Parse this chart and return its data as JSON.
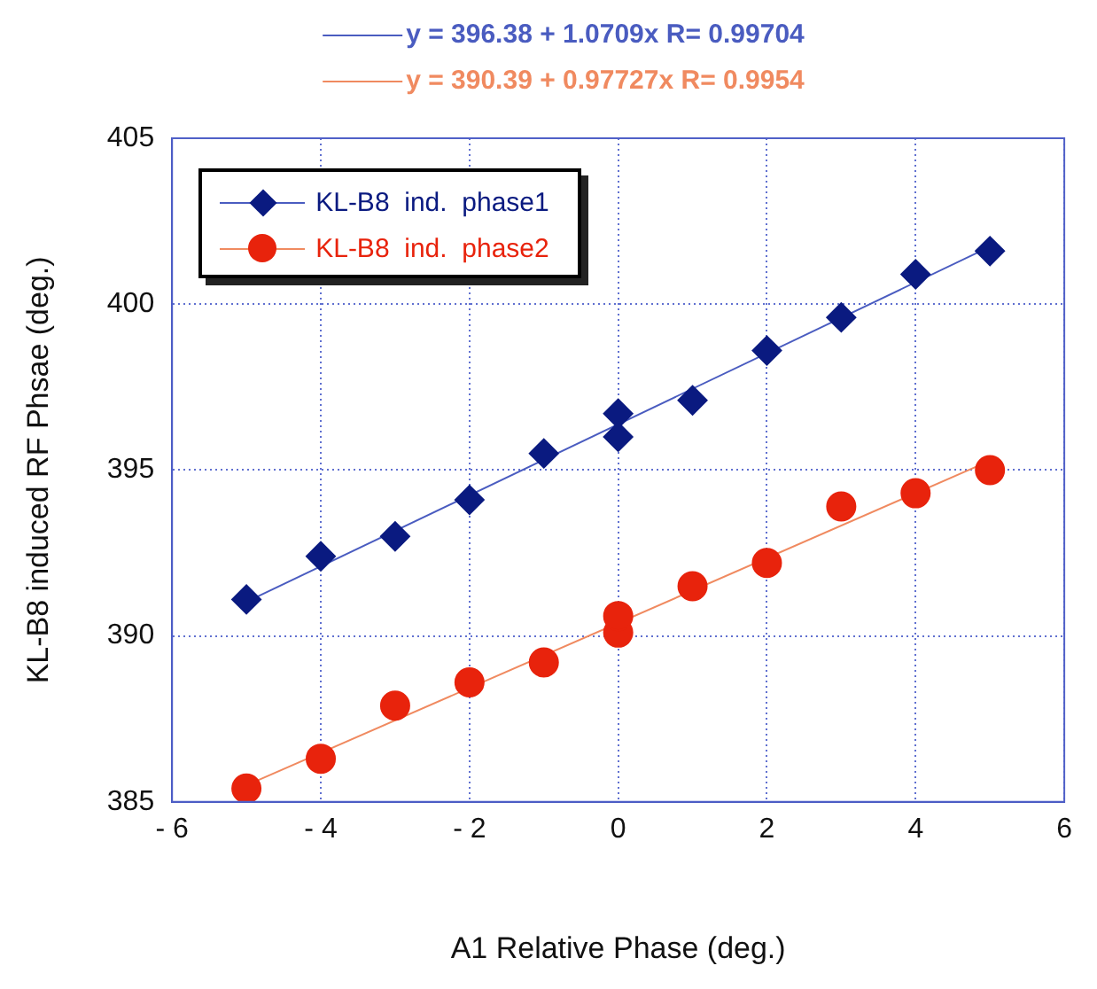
{
  "chart_data": {
    "type": "scatter",
    "xlabel": "A1 Relative Phase (deg.)",
    "ylabel": "KL-B8 induced RF Phsae (deg.)",
    "xlim": [
      -6,
      6
    ],
    "xticks": [
      {
        "value": -6,
        "label": "- 6"
      },
      {
        "value": -4,
        "label": "- 4"
      },
      {
        "value": -2,
        "label": "- 2"
      },
      0,
      2,
      4,
      6
    ],
    "ylim": [
      385,
      405
    ],
    "yticks": [
      385,
      390,
      395,
      400,
      405
    ],
    "grid": true,
    "legend": "top left",
    "series": [
      {
        "name": "KL-B8  ind.  phase1",
        "type": "scatter",
        "marker": "diamond",
        "color": "#0a1a80",
        "x": [
          -5,
          -4,
          -3,
          -2,
          -1,
          0,
          0,
          1,
          2,
          3,
          4,
          5
        ],
        "values": [
          391.1,
          392.4,
          393.0,
          394.1,
          395.5,
          396.7,
          396.0,
          397.1,
          398.6,
          399.6,
          400.9,
          401.6
        ]
      },
      {
        "name": "KL-B8  ind.  phase2",
        "type": "scatter",
        "marker": "circle",
        "color": "#e8230c",
        "x": [
          -5,
          -4,
          -3,
          -2,
          -1,
          0,
          0,
          1,
          2,
          3,
          4,
          5
        ],
        "values": [
          385.4,
          386.3,
          387.9,
          388.6,
          389.2,
          390.1,
          390.6,
          391.5,
          392.2,
          393.9,
          394.3,
          395.0
        ]
      },
      {
        "name": "y = 396.38 + 1.0709x R= 0.99704",
        "type": "line",
        "marker": "none",
        "color": "#4a5cc0",
        "x": [
          -5,
          5
        ],
        "values": [
          391.03,
          401.73
        ]
      },
      {
        "name": "y = 390.39 + 0.97727x R= 0.9954",
        "type": "line",
        "marker": "none",
        "color": "#f08a60",
        "x": [
          -5,
          5
        ],
        "values": [
          385.5,
          395.28
        ]
      }
    ]
  }
}
